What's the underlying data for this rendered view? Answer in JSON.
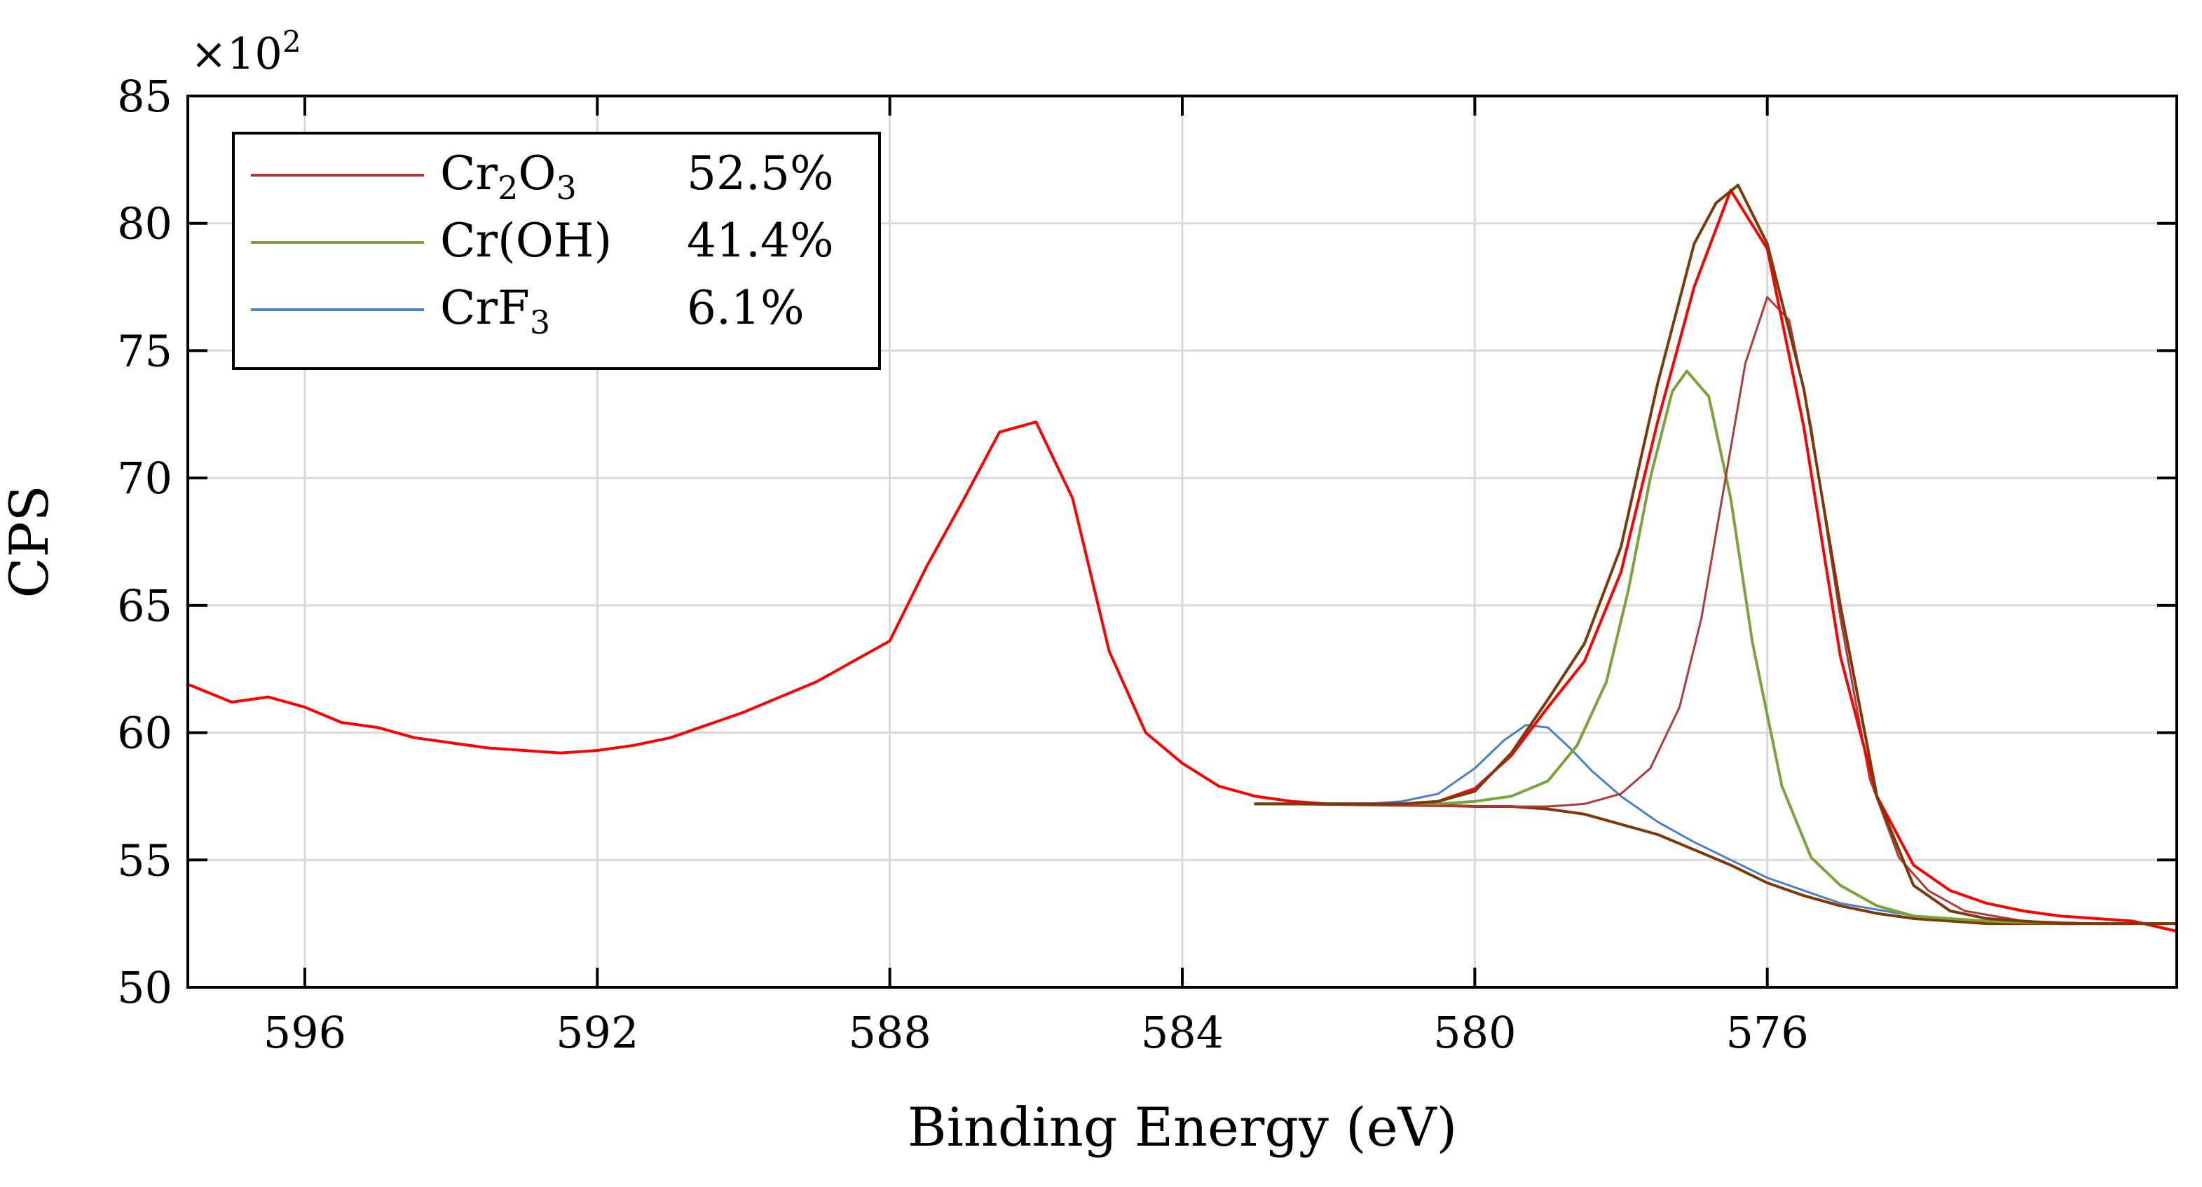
{
  "chart_data": {
    "type": "line",
    "title": "",
    "xlabel": "Binding Energy (eV)",
    "ylabel": "CPS",
    "y_multiplier_label": "×10",
    "y_multiplier_exp": "2",
    "xlim": [
      597.6,
      570.4
    ],
    "ylim": [
      50,
      85
    ],
    "x_reversed": true,
    "grid": true,
    "x_ticks": [
      596,
      592,
      588,
      584,
      580,
      576
    ],
    "y_ticks": [
      50,
      55,
      60,
      65,
      70,
      75,
      80,
      85
    ],
    "legend_position": "top-left",
    "legend": [
      {
        "base": "Cr",
        "sub": "2",
        "tail": "O",
        "sub2": "3",
        "percent": "52.5%",
        "color": "#b03a3a",
        "series": "Cr2O3"
      },
      {
        "base": "Cr(OH)",
        "sub": "",
        "tail": "",
        "sub2": "",
        "percent": "41.4%",
        "color": "#7aa33a",
        "series": "Cr(OH)"
      },
      {
        "base": "CrF",
        "sub": "3",
        "tail": "",
        "sub2": "",
        "percent": "6.1%",
        "color": "#4a7fc4",
        "series": "CrF3"
      }
    ],
    "colors": {
      "raw": "#ff0000",
      "envelope": "#7a3a0a",
      "background": "#7a3a0a",
      "Cr2O3": "#b03a3a",
      "Cr(OH)": "#7aa33a",
      "CrF3": "#4a7fc4"
    },
    "series": [
      {
        "name": "raw",
        "x": [
          597.6,
          597.0,
          596.5,
          596.0,
          595.5,
          595.0,
          594.5,
          594.0,
          593.5,
          593.0,
          592.5,
          592.0,
          591.5,
          591.0,
          590.5,
          590.0,
          589.5,
          589.0,
          588.5,
          588.0,
          587.5,
          587.0,
          586.5,
          586.0,
          585.5,
          585.0,
          584.5,
          584.0,
          583.5,
          583.0,
          582.5,
          582.0,
          581.5,
          581.0,
          580.5,
          580.0,
          579.5,
          579.0,
          578.5,
          578.0,
          577.5,
          577.0,
          576.5,
          576.0,
          575.5,
          575.0,
          574.5,
          574.0,
          573.5,
          573.0,
          572.5,
          572.0,
          571.5,
          571.0,
          570.4
        ],
        "y": [
          61.9,
          61.2,
          61.4,
          61.0,
          60.4,
          60.2,
          59.8,
          59.6,
          59.4,
          59.3,
          59.2,
          59.3,
          59.5,
          59.8,
          60.3,
          60.8,
          61.4,
          62.0,
          62.8,
          63.6,
          66.5,
          69.1,
          71.8,
          72.2,
          69.2,
          63.2,
          60.0,
          58.8,
          57.9,
          57.5,
          57.3,
          57.2,
          57.2,
          57.2,
          57.3,
          57.8,
          59.1,
          61.0,
          62.8,
          66.3,
          72.2,
          77.5,
          81.3,
          79.0,
          72.0,
          63.0,
          57.5,
          54.8,
          53.8,
          53.3,
          53.0,
          52.8,
          52.7,
          52.6,
          52.2
        ]
      },
      {
        "name": "envelope",
        "x": [
          583.0,
          582.0,
          581.0,
          580.5,
          580.0,
          579.5,
          579.0,
          578.5,
          578.0,
          577.5,
          577.0,
          576.7,
          576.4,
          576.0,
          575.5,
          575.0,
          574.5,
          574.0,
          573.5,
          573.0,
          572.0,
          571.0,
          570.4
        ],
        "y": [
          57.2,
          57.2,
          57.2,
          57.3,
          57.7,
          59.2,
          61.3,
          63.5,
          67.3,
          73.7,
          79.2,
          80.8,
          81.5,
          79.2,
          73.5,
          65.0,
          57.5,
          54.0,
          53.0,
          52.7,
          52.5,
          52.5,
          52.5
        ]
      },
      {
        "name": "background",
        "x": [
          583.0,
          581.0,
          580.0,
          579.5,
          579.0,
          578.5,
          578.0,
          577.5,
          577.0,
          576.5,
          576.0,
          575.5,
          575.0,
          574.5,
          574.0,
          573.5,
          573.0,
          572.0,
          571.0,
          570.4
        ],
        "y": [
          57.2,
          57.2,
          57.1,
          57.1,
          57.0,
          56.8,
          56.4,
          56.0,
          55.4,
          54.8,
          54.1,
          53.6,
          53.2,
          52.9,
          52.7,
          52.6,
          52.5,
          52.5,
          52.5,
          52.5
        ]
      },
      {
        "name": "Cr2O3",
        "x": [
          583.0,
          580.0,
          579.0,
          578.5,
          578.0,
          577.6,
          577.2,
          576.9,
          576.6,
          576.3,
          576.0,
          575.7,
          575.4,
          575.0,
          574.6,
          574.2,
          573.8,
          573.3,
          572.5,
          571.5,
          570.4
        ],
        "y": [
          57.2,
          57.1,
          57.1,
          57.2,
          57.6,
          58.6,
          61.0,
          64.5,
          69.5,
          74.5,
          77.1,
          76.2,
          72.0,
          64.5,
          58.2,
          55.1,
          53.8,
          53.0,
          52.6,
          52.5,
          52.5
        ]
      },
      {
        "name": "Cr(OH)",
        "x": [
          583.0,
          580.5,
          580.0,
          579.5,
          579.0,
          578.6,
          578.2,
          577.9,
          577.6,
          577.3,
          577.1,
          576.8,
          576.5,
          576.2,
          575.8,
          575.4,
          575.0,
          574.5,
          574.0,
          573.0,
          572.0,
          570.4
        ],
        "y": [
          57.2,
          57.2,
          57.3,
          57.5,
          58.1,
          59.5,
          62.0,
          65.6,
          70.0,
          73.4,
          74.2,
          73.2,
          69.2,
          63.5,
          57.9,
          55.1,
          54.0,
          53.2,
          52.8,
          52.6,
          52.5,
          52.5
        ]
      },
      {
        "name": "CrF3",
        "x": [
          583.0,
          581.5,
          581.0,
          580.5,
          580.0,
          579.6,
          579.3,
          579.0,
          578.7,
          578.4,
          578.0,
          577.5,
          577.0,
          576.0,
          575.0,
          574.0,
          573.0,
          571.5,
          570.4
        ],
        "y": [
          57.2,
          57.2,
          57.3,
          57.6,
          58.6,
          59.7,
          60.3,
          60.2,
          59.4,
          58.5,
          57.5,
          56.5,
          55.7,
          54.3,
          53.3,
          52.8,
          52.6,
          52.5,
          52.5
        ]
      }
    ]
  }
}
